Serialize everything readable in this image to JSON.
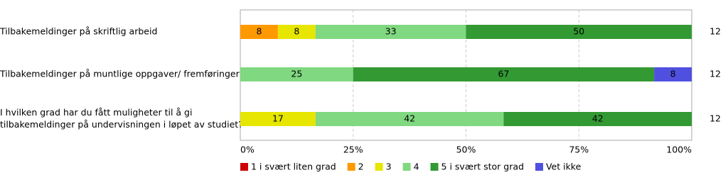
{
  "chart_data": {
    "type": "stacked-bar-horizontal",
    "categories": [
      [
        "Tilbakemeldinger på skriftlig arbeid"
      ],
      [
        "Tilbakemeldinger på muntlige oppgaver/ fremføringer"
      ],
      [
        "I hvilken grad har du fått muligheter til å gi",
        "tilbakemeldinger på undervisningen i løpet av studiet?"
      ]
    ],
    "n": [
      12,
      12,
      12
    ],
    "series": [
      {
        "name": "1 i svært liten grad",
        "color": "#cc0000",
        "values": [
          null,
          null,
          null
        ]
      },
      {
        "name": "2",
        "color": "#ff9900",
        "values": [
          8.33,
          null,
          null
        ],
        "value_labels": [
          "8",
          null,
          null
        ]
      },
      {
        "name": "3",
        "color": "#e6e600",
        "values": [
          8.33,
          null,
          16.67
        ],
        "value_labels": [
          "8",
          null,
          "17"
        ]
      },
      {
        "name": "4",
        "color": "#80d880",
        "values": [
          33.33,
          25,
          41.67
        ],
        "value_labels": [
          "33",
          "25",
          "42"
        ]
      },
      {
        "name": "5 i svært stor grad",
        "color": "#339933",
        "values": [
          50,
          66.67,
          41.67
        ],
        "value_labels": [
          "50",
          "67",
          "42"
        ]
      },
      {
        "name": "Vet ikke",
        "color": "#5050e0",
        "values": [
          null,
          8.33,
          null
        ],
        "value_labels": [
          null,
          "8",
          null
        ]
      }
    ],
    "xlim": [
      0,
      100
    ],
    "xticks": [
      {
        "value": 0,
        "label": "0%"
      },
      {
        "value": 25,
        "label": "25%"
      },
      {
        "value": 50,
        "label": "50%"
      },
      {
        "value": 75,
        "label": "75%"
      },
      {
        "value": 100,
        "label": "100%"
      }
    ],
    "grid": true
  }
}
